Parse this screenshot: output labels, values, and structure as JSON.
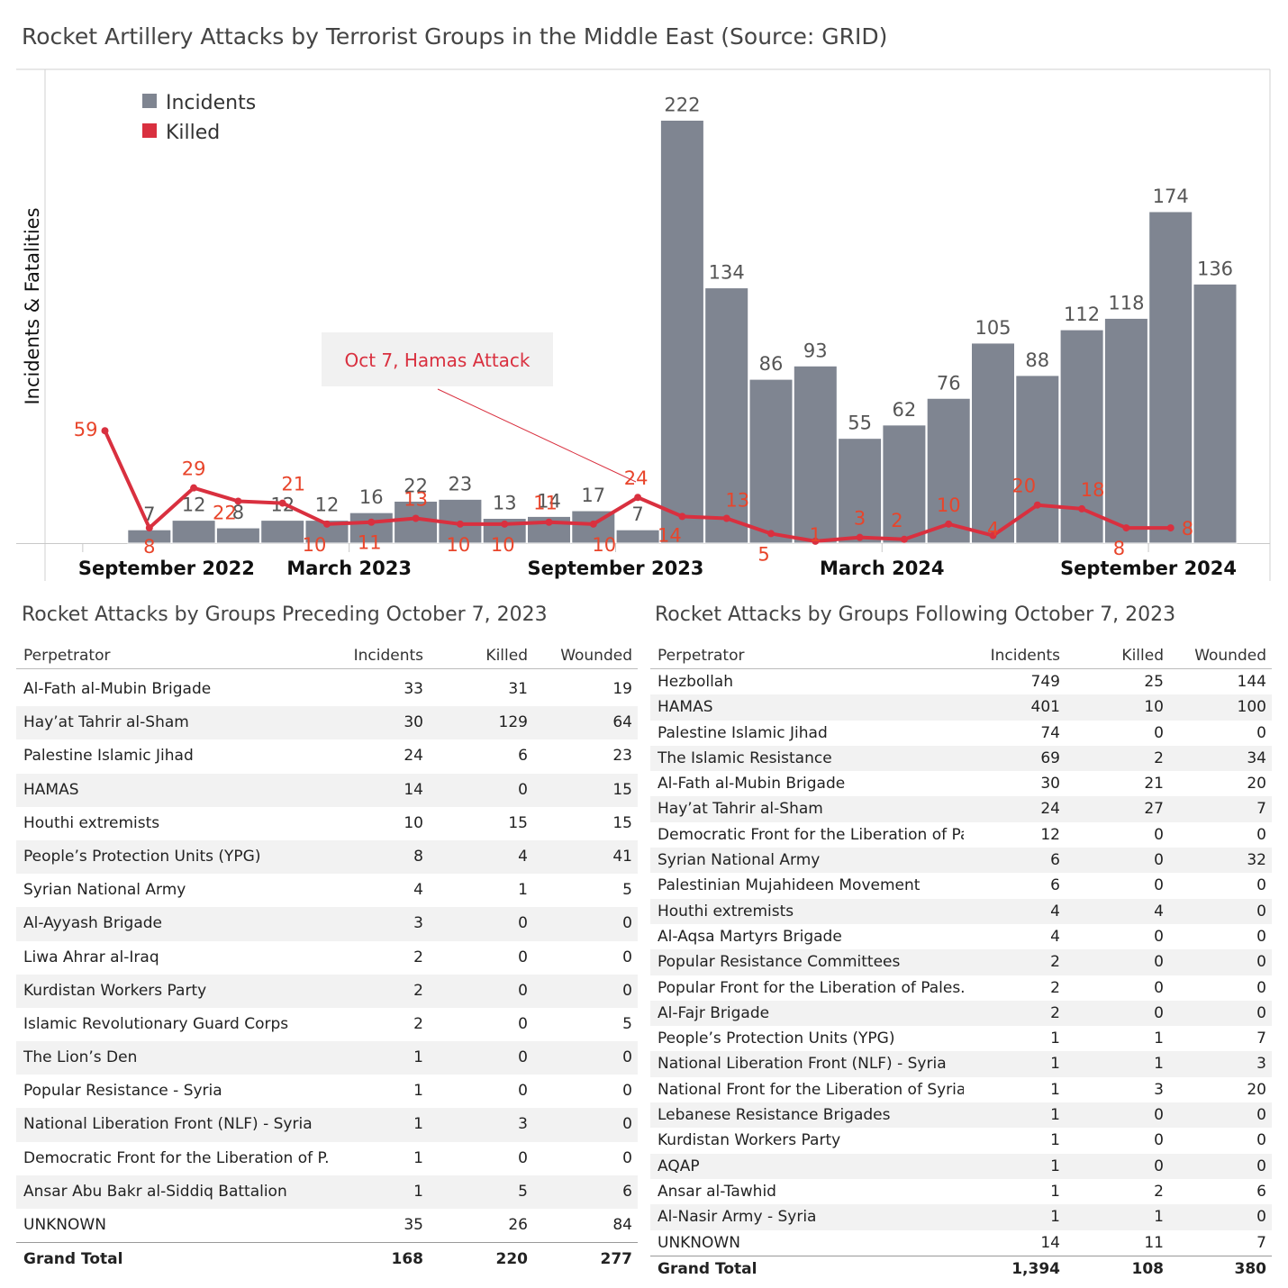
{
  "title": "Rocket Artillery Attacks by Terrorist Groups in the Middle East (Source: GRID)",
  "colors": {
    "incidents": "#7f8591",
    "killed": "#d9303f",
    "killed_label": "#e8452b",
    "annotation_bg": "#f1f1f1"
  },
  "chart_data": {
    "type": "bar",
    "categories": [
      "Sep 2022",
      "Oct 2022",
      "Nov 2022",
      "Dec 2022",
      "Jan 2023",
      "Feb 2023",
      "Mar 2023",
      "Apr 2023",
      "May 2023",
      "Jun 2023",
      "Jul 2023",
      "Aug 2023",
      "Sep 2023",
      "Oct 2023",
      "Nov 2023",
      "Dec 2023",
      "Jan 2024",
      "Feb 2024",
      "Mar 2024",
      "Apr 2024",
      "May 2024",
      "Jun 2024",
      "Jul 2024",
      "Aug 2024",
      "Sep 2024",
      "Oct 2024",
      "Nov 2024"
    ],
    "x_tick_labels": [
      {
        "label": "September 2022",
        "index": 0
      },
      {
        "label": "March 2023",
        "index": 6
      },
      {
        "label": "September 2023",
        "index": 12
      },
      {
        "label": "March 2024",
        "index": 18
      },
      {
        "label": "September 2024",
        "index": 24
      }
    ],
    "ylabel": "Incidents & Fatalities",
    "ylim": [
      0,
      240
    ],
    "legend": {
      "placement": "top-left",
      "items": [
        "Incidents",
        "Killed"
      ]
    },
    "series": [
      {
        "name": "Incidents",
        "type": "bar",
        "values": [
          null,
          7,
          12,
          8,
          12,
          12,
          16,
          22,
          23,
          13,
          14,
          17,
          7,
          222,
          134,
          86,
          93,
          55,
          62,
          76,
          105,
          88,
          112,
          118,
          174,
          136,
          null
        ]
      },
      {
        "name": "Killed",
        "type": "line",
        "values": [
          59,
          8,
          29,
          22,
          21,
          10,
          11,
          13,
          10,
          10,
          11,
          10,
          24,
          14,
          13,
          5,
          1,
          3,
          2,
          10,
          4,
          20,
          18,
          8,
          8,
          null,
          null
        ]
      }
    ],
    "annotation": {
      "text": "Oct 7, Hamas Attack"
    }
  },
  "table_pre": {
    "title": "Rocket Attacks by Groups Preceding October 7, 2023",
    "headers": [
      "Perpetrator",
      "Incidents",
      "Killed",
      "Wounded"
    ],
    "rows": [
      [
        "Al-Fath al-Mubin Brigade",
        "33",
        "31",
        "19"
      ],
      [
        "Hay’at Tahrir al-Sham",
        "30",
        "129",
        "64"
      ],
      [
        "Palestine Islamic Jihad",
        "24",
        "6",
        "23"
      ],
      [
        "HAMAS",
        "14",
        "0",
        "15"
      ],
      [
        "Houthi extremists",
        "10",
        "15",
        "15"
      ],
      [
        "People’s Protection Units (YPG)",
        "8",
        "4",
        "41"
      ],
      [
        "Syrian National Army",
        "4",
        "1",
        "5"
      ],
      [
        "Al-Ayyash Brigade",
        "3",
        "0",
        "0"
      ],
      [
        "Liwa Ahrar al-Iraq",
        "2",
        "0",
        "0"
      ],
      [
        "Kurdistan Workers Party",
        "2",
        "0",
        "0"
      ],
      [
        "Islamic Revolutionary Guard Corps",
        "2",
        "0",
        "5"
      ],
      [
        "The Lion’s Den",
        "1",
        "0",
        "0"
      ],
      [
        "Popular Resistance - Syria",
        "1",
        "0",
        "0"
      ],
      [
        "National Liberation Front (NLF) - Syria",
        "1",
        "3",
        "0"
      ],
      [
        "Democratic Front for the Liberation of P..",
        "1",
        "0",
        "0"
      ],
      [
        "Ansar Abu Bakr al-Siddiq Battalion",
        "1",
        "5",
        "6"
      ],
      [
        "UNKNOWN",
        "35",
        "26",
        "84"
      ]
    ],
    "total": [
      "Grand Total",
      "168",
      "220",
      "277"
    ]
  },
  "table_post": {
    "title": "Rocket Attacks by Groups Following October 7, 2023",
    "headers": [
      "Perpetrator",
      "Incidents",
      "Killed",
      "Wounded"
    ],
    "rows": [
      [
        "Hezbollah",
        "749",
        "25",
        "144"
      ],
      [
        "HAMAS",
        "401",
        "10",
        "100"
      ],
      [
        "Palestine Islamic Jihad",
        "74",
        "0",
        "0"
      ],
      [
        "The Islamic Resistance",
        "69",
        "2",
        "34"
      ],
      [
        "Al-Fath al-Mubin Brigade",
        "30",
        "21",
        "20"
      ],
      [
        "Hay’at Tahrir al-Sham",
        "24",
        "27",
        "7"
      ],
      [
        "Democratic Front for the Liberation of Pa..",
        "12",
        "0",
        "0"
      ],
      [
        "Syrian National Army",
        "6",
        "0",
        "32"
      ],
      [
        "Palestinian Mujahideen Movement",
        "6",
        "0",
        "0"
      ],
      [
        "Houthi extremists",
        "4",
        "4",
        "0"
      ],
      [
        "Al-Aqsa Martyrs Brigade",
        "4",
        "0",
        "0"
      ],
      [
        "Popular Resistance Committees",
        "2",
        "0",
        "0"
      ],
      [
        "Popular Front for the Liberation of Pales..",
        "2",
        "0",
        "0"
      ],
      [
        "Al-Fajr Brigade",
        "2",
        "0",
        "0"
      ],
      [
        "People’s Protection Units (YPG)",
        "1",
        "1",
        "7"
      ],
      [
        "National Liberation Front (NLF) - Syria",
        "1",
        "1",
        "3"
      ],
      [
        "National Front for the Liberation of Syria",
        "1",
        "3",
        "20"
      ],
      [
        "Lebanese Resistance Brigades",
        "1",
        "0",
        "0"
      ],
      [
        "Kurdistan Workers Party",
        "1",
        "0",
        "0"
      ],
      [
        "AQAP",
        "1",
        "0",
        "0"
      ],
      [
        "Ansar al-Tawhid",
        "1",
        "2",
        "6"
      ],
      [
        "Al-Nasir Army - Syria",
        "1",
        "1",
        "0"
      ],
      [
        "UNKNOWN",
        "14",
        "11",
        "7"
      ]
    ],
    "total": [
      "Grand Total",
      "1,394",
      "108",
      "380"
    ]
  }
}
